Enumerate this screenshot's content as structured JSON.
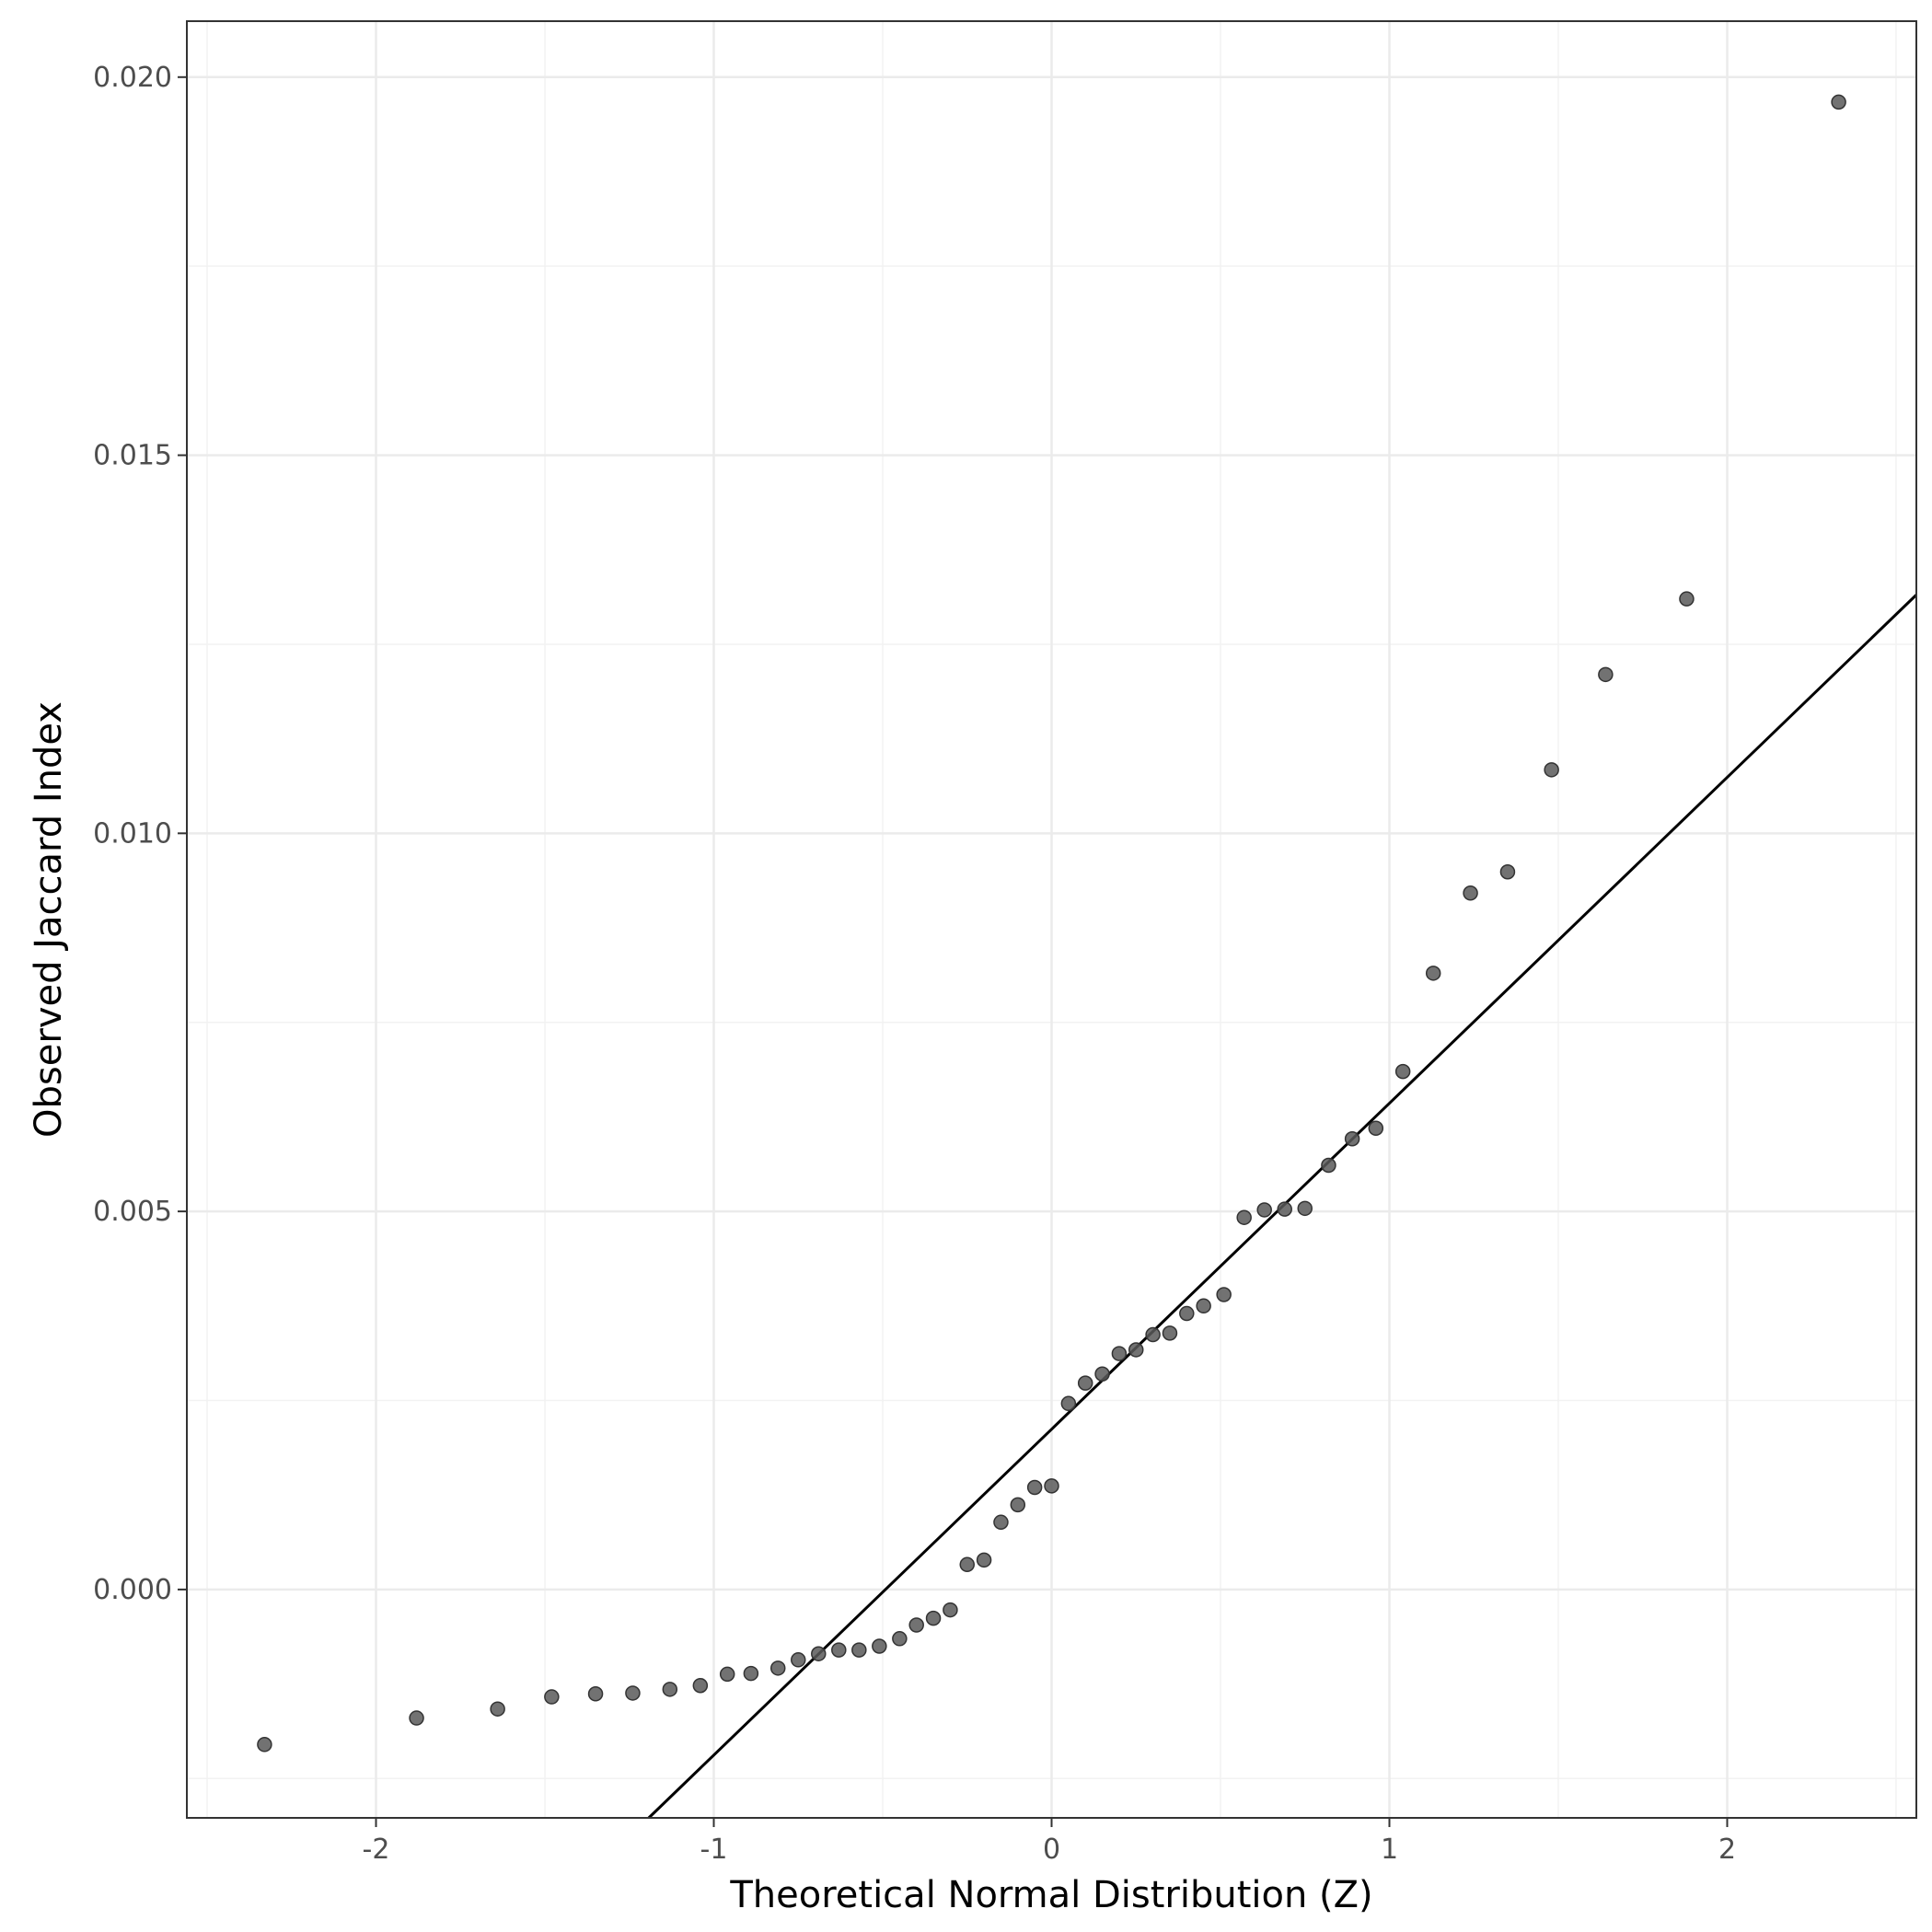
{
  "chart_data": {
    "type": "scatter",
    "title": "",
    "xlabel": "Theoretical Normal Distribution (Z)",
    "ylabel": "Observed Jaccard Index",
    "xlim": [
      -2.56,
      2.56
    ],
    "ylim": [
      -0.00302,
      0.02074
    ],
    "x_ticks": [
      {
        "value": -2,
        "label": "-2"
      },
      {
        "value": -1,
        "label": "-1"
      },
      {
        "value": 0,
        "label": "0"
      },
      {
        "value": 1,
        "label": "1"
      },
      {
        "value": 2,
        "label": "2"
      }
    ],
    "y_ticks": [
      {
        "value": 0.0,
        "label": "0.000"
      },
      {
        "value": 0.005,
        "label": "0.005"
      },
      {
        "value": 0.01,
        "label": "0.010"
      },
      {
        "value": 0.015,
        "label": "0.015"
      },
      {
        "value": 0.02,
        "label": "0.020"
      }
    ],
    "grid": true,
    "reference_line": {
      "intercept": 0.00212,
      "slope": 0.00431
    },
    "point_color": "#595959",
    "line_color": "#000000",
    "points": [
      {
        "x": -2.33,
        "y": -0.00205
      },
      {
        "x": -1.88,
        "y": -0.0017
      },
      {
        "x": -1.64,
        "y": -0.00158
      },
      {
        "x": -1.48,
        "y": -0.00142
      },
      {
        "x": -1.35,
        "y": -0.00138
      },
      {
        "x": -1.24,
        "y": -0.00137
      },
      {
        "x": -1.13,
        "y": -0.00132
      },
      {
        "x": -1.04,
        "y": -0.00127
      },
      {
        "x": -0.96,
        "y": -0.00112
      },
      {
        "x": -0.89,
        "y": -0.00111
      },
      {
        "x": -0.81,
        "y": -0.00104
      },
      {
        "x": -0.75,
        "y": -0.00093
      },
      {
        "x": -0.69,
        "y": -0.00085
      },
      {
        "x": -0.63,
        "y": -0.0008
      },
      {
        "x": -0.57,
        "y": -0.0008
      },
      {
        "x": -0.51,
        "y": -0.00075
      },
      {
        "x": -0.45,
        "y": -0.00065
      },
      {
        "x": -0.4,
        "y": -0.00047
      },
      {
        "x": -0.35,
        "y": -0.00038
      },
      {
        "x": -0.3,
        "y": -0.00027
      },
      {
        "x": -0.25,
        "y": 0.00033
      },
      {
        "x": -0.2,
        "y": 0.00039
      },
      {
        "x": -0.15,
        "y": 0.00089
      },
      {
        "x": -0.1,
        "y": 0.00112
      },
      {
        "x": -0.05,
        "y": 0.00135
      },
      {
        "x": 0.0,
        "y": 0.00137
      },
      {
        "x": 0.05,
        "y": 0.00246
      },
      {
        "x": 0.1,
        "y": 0.00273
      },
      {
        "x": 0.15,
        "y": 0.00285
      },
      {
        "x": 0.2,
        "y": 0.00312
      },
      {
        "x": 0.25,
        "y": 0.00317
      },
      {
        "x": 0.3,
        "y": 0.00337
      },
      {
        "x": 0.35,
        "y": 0.00339
      },
      {
        "x": 0.4,
        "y": 0.00365
      },
      {
        "x": 0.45,
        "y": 0.00375
      },
      {
        "x": 0.51,
        "y": 0.0039
      },
      {
        "x": 0.57,
        "y": 0.00492
      },
      {
        "x": 0.63,
        "y": 0.00502
      },
      {
        "x": 0.69,
        "y": 0.00503
      },
      {
        "x": 0.75,
        "y": 0.00504
      },
      {
        "x": 0.82,
        "y": 0.00561
      },
      {
        "x": 0.89,
        "y": 0.00596
      },
      {
        "x": 0.96,
        "y": 0.0061
      },
      {
        "x": 1.04,
        "y": 0.00685
      },
      {
        "x": 1.13,
        "y": 0.00815
      },
      {
        "x": 1.24,
        "y": 0.00921
      },
      {
        "x": 1.35,
        "y": 0.00949
      },
      {
        "x": 1.48,
        "y": 0.01084
      },
      {
        "x": 1.64,
        "y": 0.0121
      },
      {
        "x": 1.88,
        "y": 0.0131
      },
      {
        "x": 2.33,
        "y": 0.01967
      }
    ]
  }
}
